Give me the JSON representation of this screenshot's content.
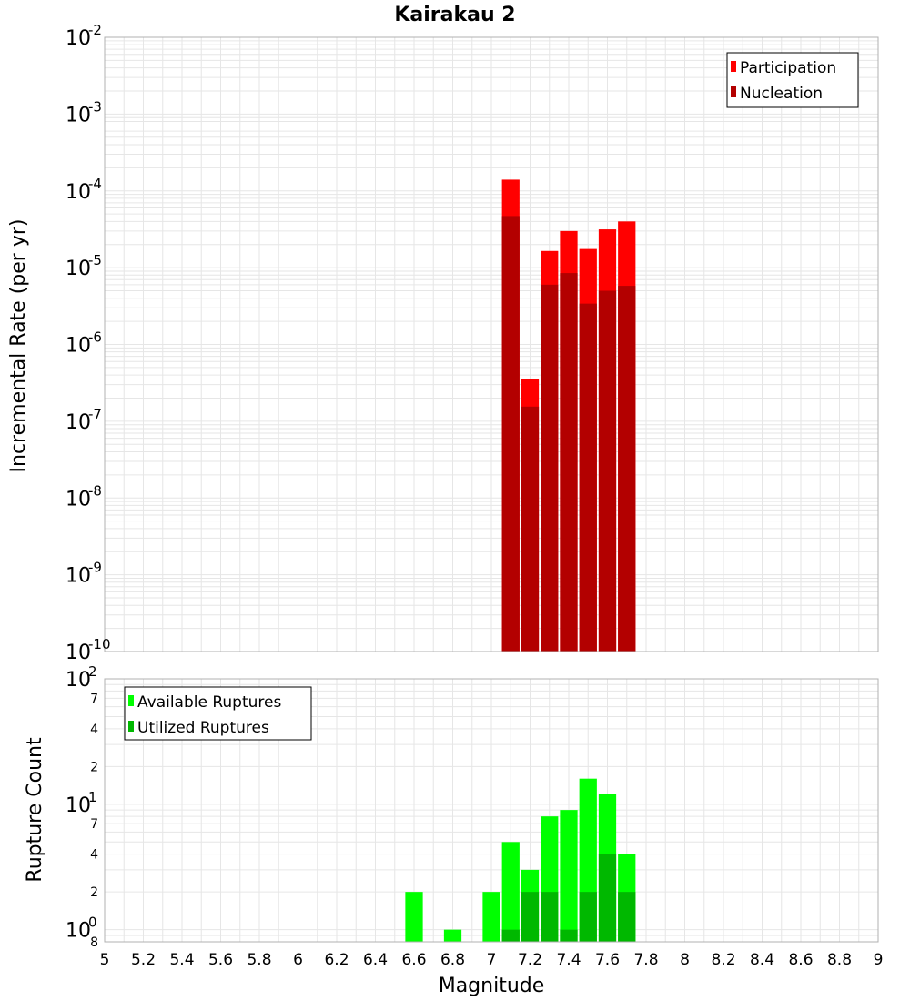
{
  "title": "Kairakau 2",
  "colors": {
    "participation": "#ff0000",
    "nucleation": "#b30000",
    "available": "#00ff00",
    "utilized": "#00b800",
    "grid": "#e6e6e6",
    "frame": "#b0b0b0"
  },
  "chart_data": [
    {
      "type": "bar",
      "panel": "top",
      "yscale": "log",
      "ylabel": "Incremental Rate (per yr)",
      "xlabel": "",
      "xlim": [
        5,
        9
      ],
      "ylim_exponents": [
        -10,
        -2
      ],
      "ytick_labels": [
        {
          "exp": -2,
          "base": "10",
          "sup": "-2"
        },
        {
          "exp": -3,
          "base": "10",
          "sup": "-3"
        },
        {
          "exp": -4,
          "base": "10",
          "sup": "-4"
        },
        {
          "exp": -5,
          "base": "10",
          "sup": "-5"
        },
        {
          "exp": -6,
          "base": "10",
          "sup": "-6"
        },
        {
          "exp": -7,
          "base": "10",
          "sup": "-7"
        },
        {
          "exp": -8,
          "base": "10",
          "sup": "-8"
        },
        {
          "exp": -9,
          "base": "10",
          "sup": "-9"
        },
        {
          "exp": -10,
          "base": "10",
          "sup": "-10"
        }
      ],
      "bin_width": 0.1,
      "x": [
        7.1,
        7.2,
        7.3,
        7.4,
        7.5,
        7.6,
        7.7
      ],
      "series": [
        {
          "name": "Participation",
          "color": "#ff0000",
          "values": [
            0.00014,
            3.5e-07,
            1.65e-05,
            3e-05,
            1.75e-05,
            3.15e-05,
            4e-05
          ]
        },
        {
          "name": "Nucleation",
          "color": "#b30000",
          "values": [
            4.7e-05,
            1.55e-07,
            6e-06,
            8.5e-06,
            3.4e-06,
            5e-06,
            5.8e-06
          ]
        }
      ],
      "legend": [
        "Participation",
        "Nucleation"
      ],
      "legend_position": "top-right"
    },
    {
      "type": "bar",
      "panel": "bottom",
      "yscale": "log",
      "ylabel": "Rupture Count",
      "xlabel": "Magnitude",
      "xlim": [
        5,
        9
      ],
      "ylim": [
        0.8,
        100
      ],
      "xticks": [
        "5",
        "5.2",
        "5.4",
        "5.6",
        "5.8",
        "6",
        "6.2",
        "6.4",
        "6.6",
        "6.8",
        "7",
        "7.2",
        "7.4",
        "7.6",
        "7.8",
        "8",
        "8.2",
        "8.4",
        "8.6",
        "8.8",
        "9"
      ],
      "ytick_labels": [
        {
          "value": 100,
          "base": "10",
          "sup": "2"
        },
        {
          "value": 70,
          "minor": "7"
        },
        {
          "value": 40,
          "minor": "4"
        },
        {
          "value": 20,
          "minor": "2"
        },
        {
          "value": 10,
          "base": "10",
          "sup": "1"
        },
        {
          "value": 7,
          "minor": "7"
        },
        {
          "value": 4,
          "minor": "4"
        },
        {
          "value": 2,
          "minor": "2"
        },
        {
          "value": 1,
          "base": "10",
          "sup": "0"
        },
        {
          "value": 0.8,
          "minor": "8"
        }
      ],
      "bin_width": 0.1,
      "x": [
        6.6,
        6.8,
        7.0,
        7.1,
        7.2,
        7.3,
        7.4,
        7.5,
        7.6,
        7.7
      ],
      "series": [
        {
          "name": "Available Ruptures",
          "color": "#00ff00",
          "values": [
            2,
            1,
            2,
            5,
            3,
            8,
            9,
            16,
            12,
            4
          ]
        },
        {
          "name": "Utilized Ruptures",
          "color": "#00b800",
          "values": [
            0,
            0,
            0,
            1,
            2,
            2,
            1,
            2,
            4,
            2
          ]
        }
      ],
      "legend": [
        "Available Ruptures",
        "Utilized Ruptures"
      ],
      "legend_position": "top-left"
    }
  ]
}
